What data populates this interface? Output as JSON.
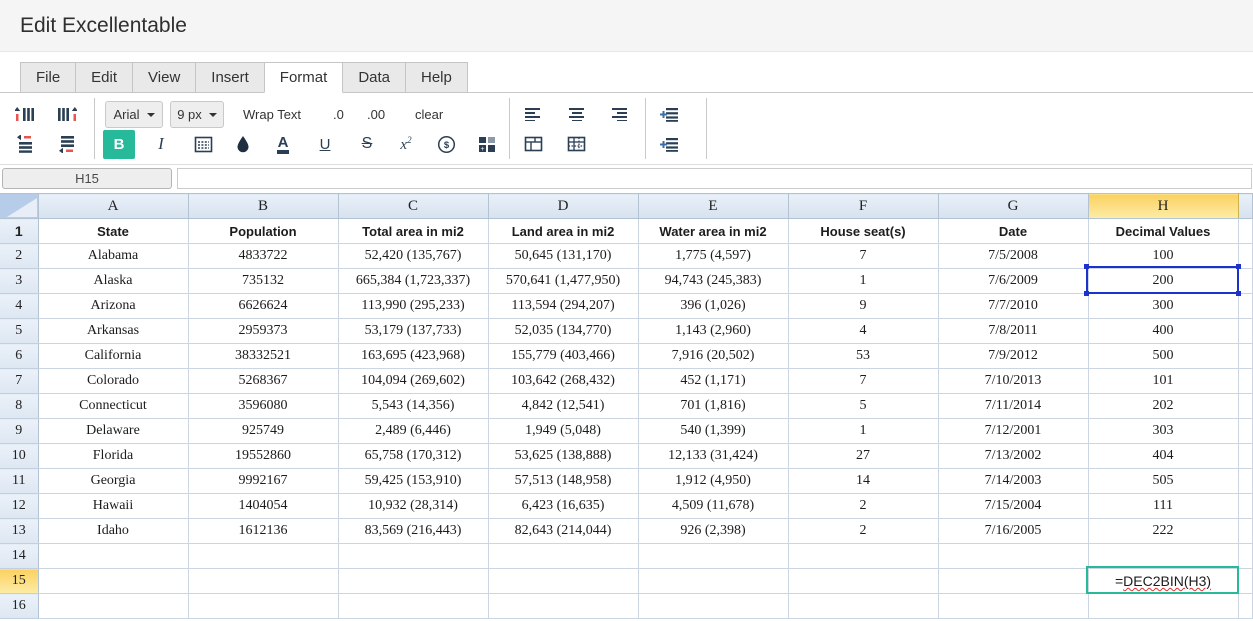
{
  "page": {
    "title": "Edit Excellentable"
  },
  "menu": {
    "tabs": [
      "File",
      "Edit",
      "View",
      "Insert",
      "Format",
      "Data",
      "Help"
    ],
    "active_tab": "Format"
  },
  "toolbar": {
    "font_name": "Arial",
    "font_size": "9 px",
    "wrap_text": "Wrap Text",
    "decimal_decrease": ".0",
    "decimal_increase": ".00",
    "clear": "clear",
    "bold": "B",
    "italic": "I",
    "font_color": "A",
    "underline": "U",
    "strikethrough": "S",
    "superscript_base": "x",
    "superscript_exp": "2",
    "currency": "$"
  },
  "formula_bar": {
    "cell_reference": "H15",
    "formula_value": ""
  },
  "grid": {
    "column_headers": [
      "A",
      "B",
      "C",
      "D",
      "E",
      "F",
      "G",
      "H"
    ],
    "highlighted_column": "H",
    "highlighted_row": 15,
    "selection": {
      "referenced_cell": "H3",
      "editing_cell": "H15",
      "formula": "=DEC2BIN(H3)"
    },
    "rows": [
      {
        "num": 1,
        "bold": true,
        "cells": [
          "State",
          "Population",
          "Total area in mi2",
          "Land area in mi2",
          "Water area in mi2",
          "House seat(s)",
          "Date",
          "Decimal Values"
        ]
      },
      {
        "num": 2,
        "cells": [
          "Alabama",
          "4833722",
          "52,420 (135,767)",
          "50,645 (131,170)",
          "1,775 (4,597)",
          "7",
          "7/5/2008",
          "100"
        ]
      },
      {
        "num": 3,
        "cells": [
          "Alaska",
          "735132",
          "665,384 (1,723,337)",
          "570,641 (1,477,950)",
          "94,743 (245,383)",
          "1",
          "7/6/2009",
          "200"
        ]
      },
      {
        "num": 4,
        "cells": [
          "Arizona",
          "6626624",
          "113,990 (295,233)",
          "113,594 (294,207)",
          "396 (1,026)",
          "9",
          "7/7/2010",
          "300"
        ]
      },
      {
        "num": 5,
        "cells": [
          "Arkansas",
          "2959373",
          "53,179 (137,733)",
          "52,035 (134,770)",
          "1,143 (2,960)",
          "4",
          "7/8/2011",
          "400"
        ]
      },
      {
        "num": 6,
        "cells": [
          "California",
          "38332521",
          "163,695 (423,968)",
          "155,779 (403,466)",
          "7,916 (20,502)",
          "53",
          "7/9/2012",
          "500"
        ]
      },
      {
        "num": 7,
        "cells": [
          "Colorado",
          "5268367",
          "104,094 (269,602)",
          "103,642 (268,432)",
          "452 (1,171)",
          "7",
          "7/10/2013",
          "101"
        ]
      },
      {
        "num": 8,
        "cells": [
          "Connecticut",
          "3596080",
          "5,543 (14,356)",
          "4,842 (12,541)",
          "701 (1,816)",
          "5",
          "7/11/2014",
          "202"
        ]
      },
      {
        "num": 9,
        "cells": [
          "Delaware",
          "925749",
          "2,489 (6,446)",
          "1,949 (5,048)",
          "540 (1,399)",
          "1",
          "7/12/2001",
          "303"
        ]
      },
      {
        "num": 10,
        "cells": [
          "Florida",
          "19552860",
          "65,758 (170,312)",
          "53,625 (138,888)",
          "12,133 (31,424)",
          "27",
          "7/13/2002",
          "404"
        ]
      },
      {
        "num": 11,
        "cells": [
          "Georgia",
          "9992167",
          "59,425 (153,910)",
          "57,513 (148,958)",
          "1,912 (4,950)",
          "14",
          "7/14/2003",
          "505"
        ]
      },
      {
        "num": 12,
        "cells": [
          "Hawaii",
          "1404054",
          "10,932 (28,314)",
          "6,423 (16,635)",
          "4,509 (11,678)",
          "2",
          "7/15/2004",
          "111"
        ]
      },
      {
        "num": 13,
        "cells": [
          "Idaho",
          "1612136",
          "83,569 (216,443)",
          "82,643 (214,044)",
          "926 (2,398)",
          "2",
          "7/16/2005",
          "222"
        ]
      },
      {
        "num": 14,
        "cells": [
          "",
          "",
          "",
          "",
          "",
          "",
          "",
          ""
        ]
      },
      {
        "num": 15,
        "cells": [
          "",
          "",
          "",
          "",
          "",
          "",
          "",
          "=DEC2BIN(H3)"
        ]
      },
      {
        "num": 16,
        "cells": [
          "",
          "",
          "",
          "",
          "",
          "",
          "",
          ""
        ]
      }
    ]
  },
  "colors": {
    "accent_teal": "#26b99a",
    "selection_blue": "#1d32cb",
    "header_yellow": "#fbd160",
    "icon_navy": "#2a3f54",
    "insert_icon_red": "#e8554d"
  }
}
